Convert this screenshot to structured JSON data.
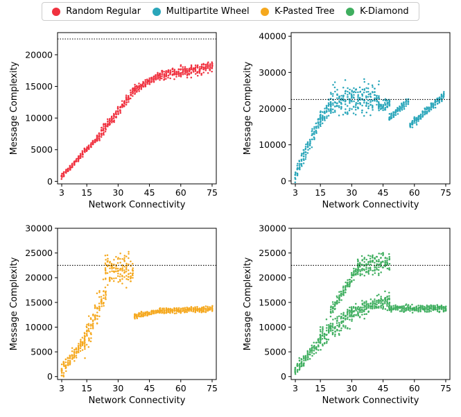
{
  "legend": {
    "items": [
      {
        "label": "Random Regular",
        "color": "#f0313f"
      },
      {
        "label": "Multipartite Wheel",
        "color": "#2aa6ba"
      },
      {
        "label": "K-Pasted Tree",
        "color": "#f5a81e"
      },
      {
        "label": "K-Diamond",
        "color": "#3fae5f"
      }
    ]
  },
  "chart_data": [
    {
      "type": "scatter",
      "series_name": "Random Regular",
      "color": "#f0313f",
      "xlabel": "Network Connectivity",
      "ylabel": "Message Complexity",
      "xlim": [
        1,
        77
      ],
      "ylim": [
        -400,
        23500
      ],
      "xticks": [
        3,
        15,
        30,
        45,
        60,
        75
      ],
      "yticks": [
        0,
        5000,
        10000,
        15000,
        20000
      ],
      "reference_line_y": 22500,
      "segments": [
        {
          "x_start": 3,
          "x_end": 20,
          "y_start": 800,
          "y_end": 6800,
          "spread": 800
        },
        {
          "x_start": 20,
          "x_end": 38,
          "y_start": 6800,
          "y_end": 14500,
          "spread": 1400
        },
        {
          "x_start": 38,
          "x_end": 50,
          "y_start": 14500,
          "y_end": 16800,
          "spread": 1000
        },
        {
          "x_start": 50,
          "x_end": 75,
          "y_start": 16800,
          "y_end": 18000,
          "spread": 1600
        }
      ]
    },
    {
      "type": "scatter",
      "series_name": "Multipartite Wheel",
      "color": "#2aa6ba",
      "xlabel": "Network Connectivity",
      "ylabel": "Message Complexity",
      "xlim": [
        1,
        77
      ],
      "ylim": [
        -800,
        41000
      ],
      "xticks": [
        3,
        15,
        30,
        45,
        60,
        75
      ],
      "yticks": [
        0,
        10000,
        20000,
        30000,
        40000
      ],
      "reference_line_y": 22500,
      "segments": [
        {
          "x_start": 3,
          "x_end": 15,
          "y_start": 2000,
          "y_end": 17000,
          "spread": 4500
        },
        {
          "x_start": 15,
          "x_end": 20,
          "y_start": 17000,
          "y_end": 21000,
          "spread": 3500
        },
        {
          "x_start": 20,
          "x_end": 43,
          "y_start": 22000,
          "y_end": 23000,
          "spread": 8000
        },
        {
          "x_start": 43,
          "x_end": 48,
          "y_start": 20500,
          "y_end": 21500,
          "spread": 2500
        },
        {
          "x_start": 48,
          "x_end": 57,
          "y_start": 17500,
          "y_end": 22000,
          "spread": 2000
        },
        {
          "x_start": 58,
          "x_end": 74,
          "y_start": 15500,
          "y_end": 23500,
          "spread": 2000
        }
      ]
    },
    {
      "type": "scatter",
      "series_name": "K-Pasted Tree",
      "color": "#f5a81e",
      "xlabel": "Network Connectivity",
      "ylabel": "Message Complexity",
      "xlim": [
        1,
        77
      ],
      "ylim": [
        -600,
        30000
      ],
      "xticks": [
        3,
        15,
        30,
        45,
        60,
        75
      ],
      "yticks": [
        0,
        5000,
        10000,
        15000,
        20000,
        25000,
        30000
      ],
      "reference_line_y": 22500,
      "segments": [
        {
          "x_start": 3,
          "x_end": 14,
          "y_start": 1000,
          "y_end": 7500,
          "spread": 2500
        },
        {
          "x_start": 14,
          "x_end": 24,
          "y_start": 7500,
          "y_end": 17000,
          "spread": 5000
        },
        {
          "x_start": 24,
          "x_end": 37,
          "y_start": 22000,
          "y_end": 21000,
          "spread": 5500
        },
        {
          "x_start": 38,
          "x_end": 50,
          "y_start": 12200,
          "y_end": 13300,
          "spread": 900
        },
        {
          "x_start": 50,
          "x_end": 75,
          "y_start": 13300,
          "y_end": 13700,
          "spread": 1000
        }
      ]
    },
    {
      "type": "scatter",
      "series_name": "K-Diamond",
      "color": "#3fae5f",
      "xlabel": "Network Connectivity",
      "ylabel": "Message Complexity",
      "xlim": [
        1,
        77
      ],
      "ylim": [
        -600,
        30000
      ],
      "xticks": [
        3,
        15,
        30,
        45,
        60,
        75
      ],
      "yticks": [
        0,
        5000,
        10000,
        15000,
        20000,
        25000,
        30000
      ],
      "reference_line_y": 22500,
      "segments": [
        {
          "x_start": 3,
          "x_end": 15,
          "y_start": 1000,
          "y_end": 7500,
          "spread": 2500
        },
        {
          "x_start": 15,
          "x_end": 30,
          "y_start": 7500,
          "y_end": 13000,
          "spread": 4000
        },
        {
          "x_start": 30,
          "x_end": 48,
          "y_start": 13000,
          "y_end": 15500,
          "spread": 3000
        },
        {
          "x_start": 20,
          "x_end": 33,
          "y_start": 13000,
          "y_end": 22000,
          "spread": 2000
        },
        {
          "x_start": 33,
          "x_end": 48,
          "y_start": 22000,
          "y_end": 23500,
          "spread": 4000
        },
        {
          "x_start": 48,
          "x_end": 75,
          "y_start": 13800,
          "y_end": 13800,
          "spread": 1200
        }
      ]
    }
  ]
}
